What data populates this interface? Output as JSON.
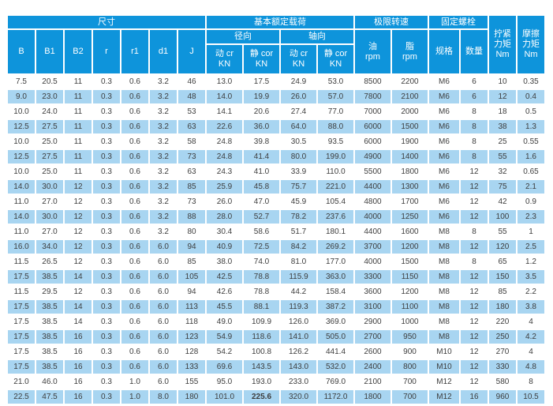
{
  "colors": {
    "header_blue": "#0e94db",
    "alt_row_blue": "#a8d5f1",
    "header_text": "#ffffff",
    "data_text": "#3d3d3d",
    "background": "#ffffff"
  },
  "table": {
    "header": {
      "size_group": "尺寸",
      "load_group": "基本额定载荷",
      "speed_group": "极限转速",
      "bolt_group": "固定螺栓",
      "tighten_torque": "拧紧\n力矩\nNm",
      "friction_torque": "摩擦\n力矩\nNm",
      "radial": "径向",
      "axial": "轴向",
      "dim_cols": [
        "B",
        "B1",
        "B2",
        "r",
        "r1",
        "d1",
        "J"
      ],
      "dynamic_cr": "动 cr\nKN",
      "static_cor": "静 cor\nKN",
      "oil": "油\nrpm",
      "grease": "脂\nrpm",
      "spec": "规格",
      "qty": "数量"
    },
    "rows": [
      [
        "7.5",
        "20.5",
        "11",
        "0.3",
        "0.6",
        "3.2",
        "46",
        "13.0",
        "17.5",
        "24.9",
        "53.0",
        "8500",
        "2200",
        "M6",
        "6",
        "10",
        "0.35"
      ],
      [
        "9.0",
        "23.0",
        "11",
        "0.3",
        "0.6",
        "3.2",
        "48",
        "14.0",
        "19.9",
        "26.0",
        "57.0",
        "7800",
        "2100",
        "M6",
        "6",
        "12",
        "0.4"
      ],
      [
        "10.0",
        "24.0",
        "11",
        "0.3",
        "0.6",
        "3.2",
        "53",
        "14.1",
        "20.6",
        "27.4",
        "77.0",
        "7000",
        "2000",
        "M6",
        "8",
        "18",
        "0.5"
      ],
      [
        "12.5",
        "27.5",
        "11",
        "0.3",
        "0.6",
        "3.2",
        "63",
        "22.6",
        "36.0",
        "64.0",
        "88.0",
        "6000",
        "1500",
        "M6",
        "8",
        "38",
        "1.3"
      ],
      [
        "10.0",
        "25.0",
        "11",
        "0.3",
        "0.6",
        "3.2",
        "58",
        "24.8",
        "39.8",
        "30.5",
        "93.5",
        "6000",
        "1900",
        "M6",
        "8",
        "25",
        "0.55"
      ],
      [
        "12.5",
        "27.5",
        "11",
        "0.3",
        "0.6",
        "3.2",
        "73",
        "24.8",
        "41.4",
        "80.0",
        "199.0",
        "4900",
        "1400",
        "M6",
        "8",
        "55",
        "1.6"
      ],
      [
        "10.0",
        "25.0",
        "11",
        "0.3",
        "0.6",
        "3.2",
        "63",
        "24.3",
        "41.0",
        "33.9",
        "110.0",
        "5500",
        "1800",
        "M6",
        "12",
        "32",
        "0.65"
      ],
      [
        "14.0",
        "30.0",
        "12",
        "0.3",
        "0.6",
        "3.2",
        "85",
        "25.9",
        "45.8",
        "75.7",
        "221.0",
        "4400",
        "1300",
        "M6",
        "12",
        "75",
        "2.1"
      ],
      [
        "11.0",
        "27.0",
        "12",
        "0.3",
        "0.6",
        "3.2",
        "73",
        "26.0",
        "47.0",
        "45.9",
        "105.4",
        "4800",
        "1700",
        "M6",
        "12",
        "42",
        "0.9"
      ],
      [
        "14.0",
        "30.0",
        "12",
        "0.3",
        "0.6",
        "3.2",
        "88",
        "28.0",
        "52.7",
        "78.2",
        "237.6",
        "4000",
        "1250",
        "M6",
        "12",
        "100",
        "2.3"
      ],
      [
        "11.0",
        "27.0",
        "12",
        "0.3",
        "0.6",
        "3.2",
        "80",
        "30.4",
        "58.6",
        "51.7",
        "180.1",
        "4400",
        "1600",
        "M8",
        "8",
        "55",
        "1"
      ],
      [
        "16.0",
        "34.0",
        "12",
        "0.3",
        "0.6",
        "6.0",
        "94",
        "40.9",
        "72.5",
        "84.2",
        "269.2",
        "3700",
        "1200",
        "M8",
        "12",
        "120",
        "2.5"
      ],
      [
        "11.5",
        "26.5",
        "12",
        "0.3",
        "0.6",
        "6.0",
        "85",
        "38.0",
        "74.0",
        "81.0",
        "177.0",
        "4000",
        "1500",
        "M8",
        "8",
        "65",
        "1.2"
      ],
      [
        "17.5",
        "38.5",
        "14",
        "0.3",
        "0.6",
        "6.0",
        "105",
        "42.5",
        "78.8",
        "115.9",
        "363.0",
        "3300",
        "1150",
        "M8",
        "12",
        "150",
        "3.5"
      ],
      [
        "11.5",
        "29.5",
        "12",
        "0.3",
        "0.6",
        "6.0",
        "94",
        "42.6",
        "78.8",
        "44.2",
        "158.4",
        "3600",
        "1200",
        "M8",
        "12",
        "85",
        "2.2"
      ],
      [
        "17.5",
        "38.5",
        "14",
        "0.3",
        "0.6",
        "6.0",
        "113",
        "45.5",
        "88.1",
        "119.3",
        "387.2",
        "3100",
        "1100",
        "M8",
        "12",
        "180",
        "3.8"
      ],
      [
        "17.5",
        "38.5",
        "14",
        "0.3",
        "0.6",
        "6.0",
        "118",
        "49.0",
        "109.9",
        "126.0",
        "369.0",
        "2900",
        "1000",
        "M8",
        "12",
        "220",
        "4"
      ],
      [
        "17.5",
        "38.5",
        "16",
        "0.3",
        "0.6",
        "6.0",
        "123",
        "54.9",
        "118.6",
        "141.0",
        "505.0",
        "2700",
        "950",
        "M8",
        "12",
        "250",
        "4.2"
      ],
      [
        "17.5",
        "38.5",
        "16",
        "0.3",
        "0.6",
        "6.0",
        "128",
        "54.2",
        "100.8",
        "126.2",
        "441.4",
        "2600",
        "900",
        "M10",
        "12",
        "270",
        "4"
      ],
      [
        "17.5",
        "38.5",
        "16",
        "0.3",
        "0.6",
        "6.0",
        "133",
        "69.6",
        "143.5",
        "143.0",
        "532.0",
        "2400",
        "800",
        "M10",
        "12",
        "330",
        "4.8"
      ],
      [
        "21.0",
        "46.0",
        "16",
        "0.3",
        "1.0",
        "6.0",
        "155",
        "95.0",
        "193.0",
        "233.0",
        "769.0",
        "2100",
        "700",
        "M12",
        "12",
        "580",
        "8"
      ],
      [
        "22.5",
        "47.5",
        "16",
        "0.3",
        "1.0",
        "8.0",
        "180",
        "101.0",
        "225.6",
        "320.0",
        "1172.0",
        "1800",
        "700",
        "M12",
        "16",
        "960",
        "10.5"
      ]
    ],
    "bold_cell": {
      "row": 21,
      "col": 8
    }
  }
}
